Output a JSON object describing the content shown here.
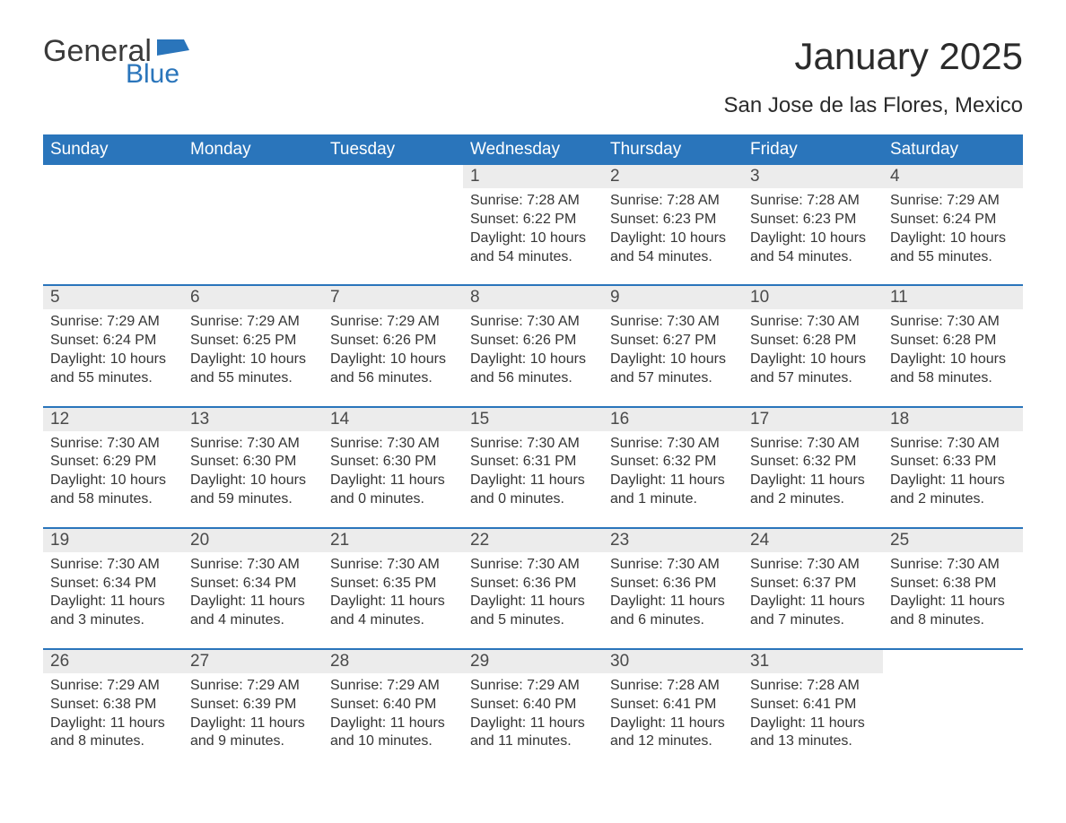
{
  "logo": {
    "top": "General",
    "bottom": "Blue"
  },
  "title": "January 2025",
  "subtitle": "San Jose de las Flores, Mexico",
  "colors": {
    "header_blue": "#2a75bb",
    "row_grey": "#ececec",
    "background": "#ffffff",
    "text": "#353535"
  },
  "day_headers": [
    "Sunday",
    "Monday",
    "Tuesday",
    "Wednesday",
    "Thursday",
    "Friday",
    "Saturday"
  ],
  "weeks": [
    [
      null,
      null,
      null,
      {
        "n": "1",
        "sunrise": "7:28 AM",
        "sunset": "6:22 PM",
        "daylight": "10 hours and 54 minutes."
      },
      {
        "n": "2",
        "sunrise": "7:28 AM",
        "sunset": "6:23 PM",
        "daylight": "10 hours and 54 minutes."
      },
      {
        "n": "3",
        "sunrise": "7:28 AM",
        "sunset": "6:23 PM",
        "daylight": "10 hours and 54 minutes."
      },
      {
        "n": "4",
        "sunrise": "7:29 AM",
        "sunset": "6:24 PM",
        "daylight": "10 hours and 55 minutes."
      }
    ],
    [
      {
        "n": "5",
        "sunrise": "7:29 AM",
        "sunset": "6:24 PM",
        "daylight": "10 hours and 55 minutes."
      },
      {
        "n": "6",
        "sunrise": "7:29 AM",
        "sunset": "6:25 PM",
        "daylight": "10 hours and 55 minutes."
      },
      {
        "n": "7",
        "sunrise": "7:29 AM",
        "sunset": "6:26 PM",
        "daylight": "10 hours and 56 minutes."
      },
      {
        "n": "8",
        "sunrise": "7:30 AM",
        "sunset": "6:26 PM",
        "daylight": "10 hours and 56 minutes."
      },
      {
        "n": "9",
        "sunrise": "7:30 AM",
        "sunset": "6:27 PM",
        "daylight": "10 hours and 57 minutes."
      },
      {
        "n": "10",
        "sunrise": "7:30 AM",
        "sunset": "6:28 PM",
        "daylight": "10 hours and 57 minutes."
      },
      {
        "n": "11",
        "sunrise": "7:30 AM",
        "sunset": "6:28 PM",
        "daylight": "10 hours and 58 minutes."
      }
    ],
    [
      {
        "n": "12",
        "sunrise": "7:30 AM",
        "sunset": "6:29 PM",
        "daylight": "10 hours and 58 minutes."
      },
      {
        "n": "13",
        "sunrise": "7:30 AM",
        "sunset": "6:30 PM",
        "daylight": "10 hours and 59 minutes."
      },
      {
        "n": "14",
        "sunrise": "7:30 AM",
        "sunset": "6:30 PM",
        "daylight": "11 hours and 0 minutes."
      },
      {
        "n": "15",
        "sunrise": "7:30 AM",
        "sunset": "6:31 PM",
        "daylight": "11 hours and 0 minutes."
      },
      {
        "n": "16",
        "sunrise": "7:30 AM",
        "sunset": "6:32 PM",
        "daylight": "11 hours and 1 minute."
      },
      {
        "n": "17",
        "sunrise": "7:30 AM",
        "sunset": "6:32 PM",
        "daylight": "11 hours and 2 minutes."
      },
      {
        "n": "18",
        "sunrise": "7:30 AM",
        "sunset": "6:33 PM",
        "daylight": "11 hours and 2 minutes."
      }
    ],
    [
      {
        "n": "19",
        "sunrise": "7:30 AM",
        "sunset": "6:34 PM",
        "daylight": "11 hours and 3 minutes."
      },
      {
        "n": "20",
        "sunrise": "7:30 AM",
        "sunset": "6:34 PM",
        "daylight": "11 hours and 4 minutes."
      },
      {
        "n": "21",
        "sunrise": "7:30 AM",
        "sunset": "6:35 PM",
        "daylight": "11 hours and 4 minutes."
      },
      {
        "n": "22",
        "sunrise": "7:30 AM",
        "sunset": "6:36 PM",
        "daylight": "11 hours and 5 minutes."
      },
      {
        "n": "23",
        "sunrise": "7:30 AM",
        "sunset": "6:36 PM",
        "daylight": "11 hours and 6 minutes."
      },
      {
        "n": "24",
        "sunrise": "7:30 AM",
        "sunset": "6:37 PM",
        "daylight": "11 hours and 7 minutes."
      },
      {
        "n": "25",
        "sunrise": "7:30 AM",
        "sunset": "6:38 PM",
        "daylight": "11 hours and 8 minutes."
      }
    ],
    [
      {
        "n": "26",
        "sunrise": "7:29 AM",
        "sunset": "6:38 PM",
        "daylight": "11 hours and 8 minutes."
      },
      {
        "n": "27",
        "sunrise": "7:29 AM",
        "sunset": "6:39 PM",
        "daylight": "11 hours and 9 minutes."
      },
      {
        "n": "28",
        "sunrise": "7:29 AM",
        "sunset": "6:40 PM",
        "daylight": "11 hours and 10 minutes."
      },
      {
        "n": "29",
        "sunrise": "7:29 AM",
        "sunset": "6:40 PM",
        "daylight": "11 hours and 11 minutes."
      },
      {
        "n": "30",
        "sunrise": "7:28 AM",
        "sunset": "6:41 PM",
        "daylight": "11 hours and 12 minutes."
      },
      {
        "n": "31",
        "sunrise": "7:28 AM",
        "sunset": "6:41 PM",
        "daylight": "11 hours and 13 minutes."
      },
      null
    ]
  ],
  "labels": {
    "sunrise": "Sunrise: ",
    "sunset": "Sunset: ",
    "daylight": "Daylight: "
  }
}
